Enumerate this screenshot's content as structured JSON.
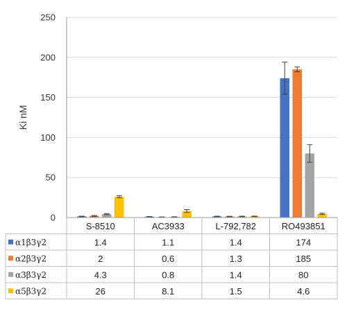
{
  "chart_data": {
    "type": "bar",
    "title": "",
    "xlabel": "",
    "ylabel": "Ki nM",
    "ylim": [
      0,
      250
    ],
    "yticks": [
      0,
      50,
      100,
      150,
      200,
      250
    ],
    "grid": true,
    "legend_placement": "data-table",
    "categories": [
      "S-8510",
      "AC3933",
      "L-792,782",
      "RO493851"
    ],
    "series": [
      {
        "name": "α1β3γ2",
        "color": "#4472c4",
        "values": [
          1.4,
          1.1,
          1.4,
          174
        ],
        "errors": [
          0.3,
          0.2,
          0.3,
          20
        ],
        "labels": [
          "1.4",
          "1.1",
          "1.4",
          "174"
        ]
      },
      {
        "name": "α2β3γ2",
        "color": "#ed7d31",
        "values": [
          2,
          0.6,
          1.3,
          185
        ],
        "errors": [
          0.5,
          0.2,
          0.3,
          3
        ],
        "labels": [
          "2",
          "0.6",
          "1.3",
          "185"
        ]
      },
      {
        "name": "α3β3γ2",
        "color": "#a5a5a5",
        "values": [
          4.3,
          0.8,
          1.4,
          80
        ],
        "errors": [
          0.7,
          0.2,
          0.3,
          11
        ],
        "labels": [
          "4.3",
          "0.8",
          "1.4",
          "80"
        ]
      },
      {
        "name": "α5β3γ2",
        "color": "#ffc000",
        "values": [
          26,
          8.1,
          1.5,
          4.6
        ],
        "errors": [
          1.2,
          1.8,
          0.3,
          0.8
        ],
        "labels": [
          "26",
          "8.1",
          "1.5",
          "4.6"
        ]
      }
    ]
  }
}
